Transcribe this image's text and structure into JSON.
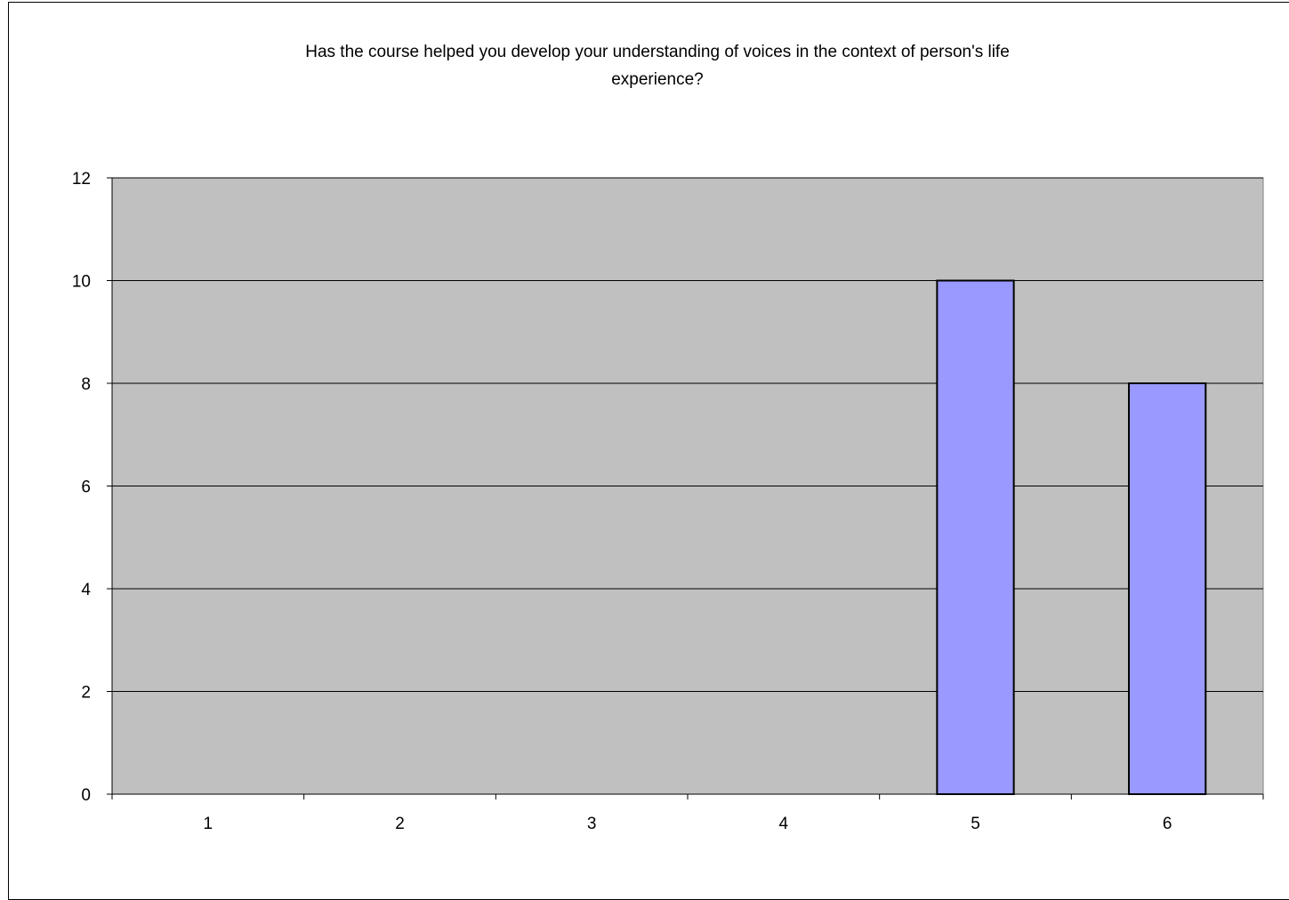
{
  "chart_data": {
    "type": "bar",
    "title_lines": [
      "Has the course helped you develop your understanding of voices in the context of person's life",
      "experience?"
    ],
    "categories": [
      "1",
      "2",
      "3",
      "4",
      "5",
      "6"
    ],
    "values": [
      0,
      0,
      0,
      0,
      10,
      8
    ],
    "xlabel": "",
    "ylabel": "",
    "ylim": [
      0,
      12
    ],
    "yticks": [
      "0",
      "2",
      "4",
      "6",
      "8",
      "10",
      "12"
    ],
    "grid": true,
    "legend": "none",
    "colors": {
      "plot_background": "#c0c0c0",
      "bar_fill": "#9999ff",
      "bar_stroke": "#000000",
      "gridline": "#000000"
    }
  }
}
